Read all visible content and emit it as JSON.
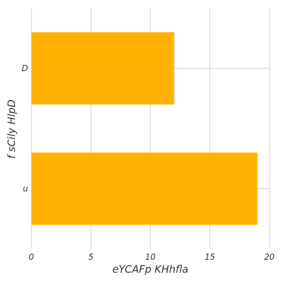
{
  "chart_data": {
    "type": "bar",
    "orientation": "horizontal",
    "categories": [
      "u",
      "D"
    ],
    "values": [
      19,
      12
    ],
    "xlabel": "eYCAFp KHhfla",
    "ylabel": "f  sCily HlpD",
    "xlim": [
      0,
      20
    ],
    "xticks": [
      "0",
      "5",
      "10",
      "15",
      "20"
    ],
    "grid": true,
    "bar_color": "#FFB300",
    "grid_color": "#CCCCCC"
  }
}
